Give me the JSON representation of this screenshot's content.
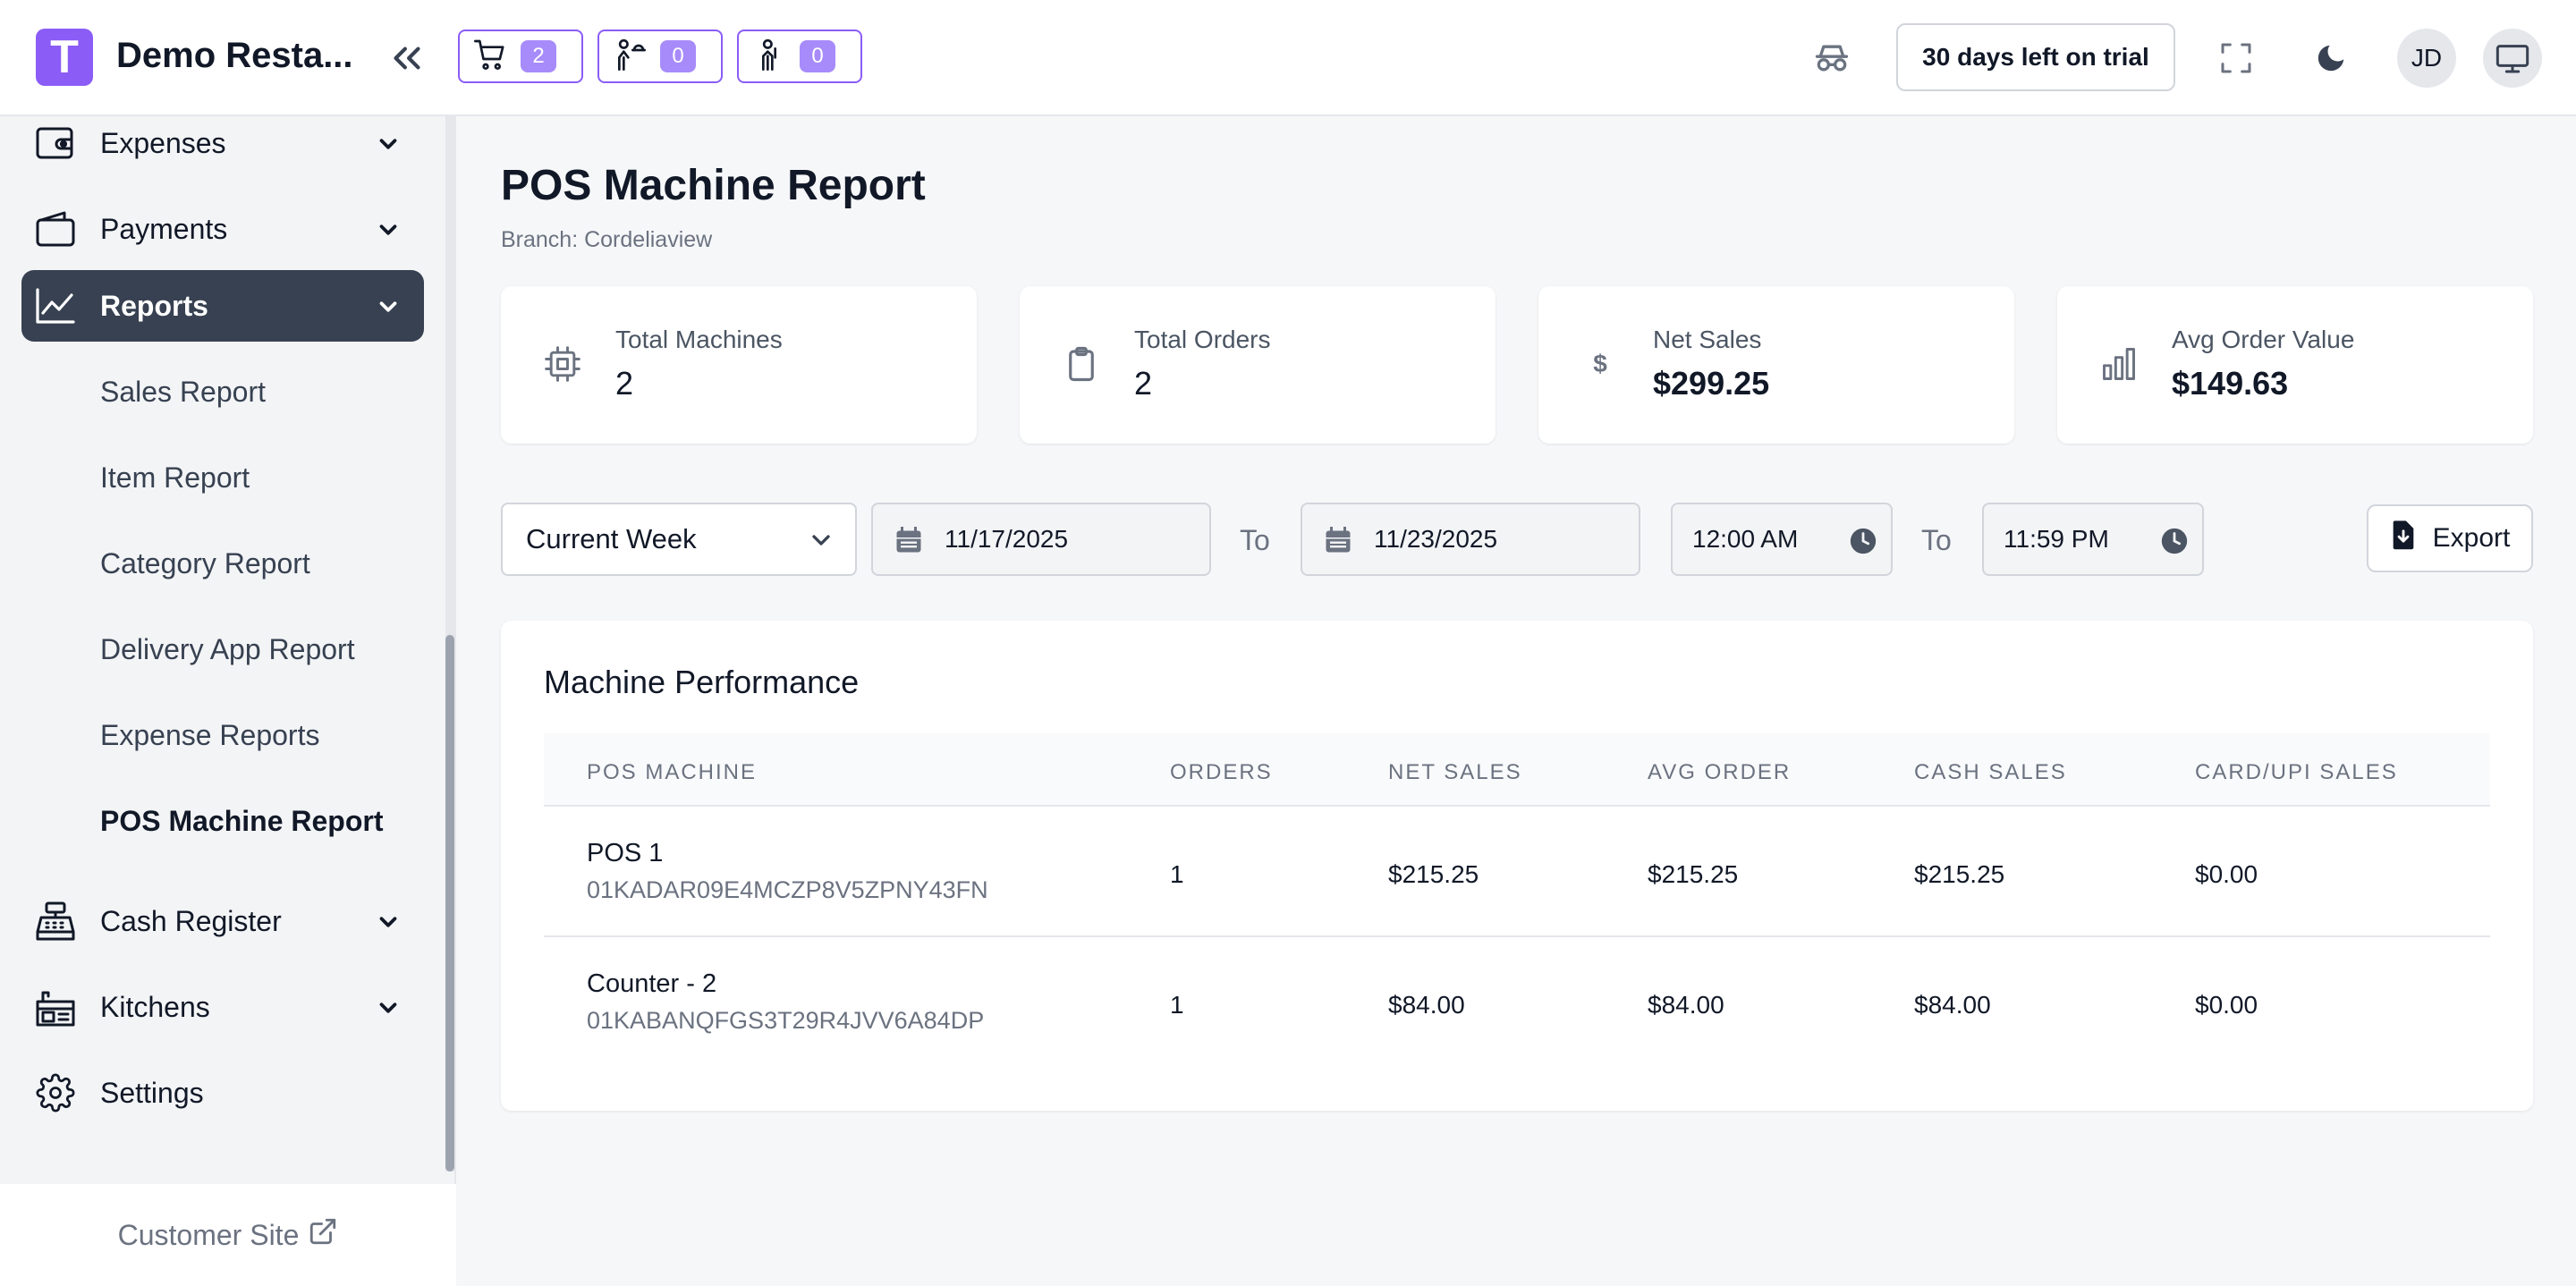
{
  "header": {
    "logo_letter": "T",
    "app_title": "Demo Resta...",
    "cart_count": "2",
    "waiter_count": "0",
    "chef_count": "0",
    "trial_text": "30 days left on trial",
    "avatar_initials": "JD"
  },
  "sidebar": {
    "items": [
      {
        "label": "Expenses"
      },
      {
        "label": "Payments"
      },
      {
        "label": "Reports"
      },
      {
        "label": "Cash Register"
      },
      {
        "label": "Kitchens"
      },
      {
        "label": "Settings"
      }
    ],
    "reports_sub": [
      "Sales Report",
      "Item Report",
      "Category Report",
      "Delivery App Report",
      "Expense Reports",
      "POS Machine Report"
    ],
    "customer_site": "Customer Site"
  },
  "page": {
    "title": "POS Machine Report",
    "branch": "Branch: Cordeliaview"
  },
  "stats": [
    {
      "label": "Total Machines",
      "value": "2"
    },
    {
      "label": "Total Orders",
      "value": "2"
    },
    {
      "label": "Net Sales",
      "value": "$299.25"
    },
    {
      "label": "Avg Order Value",
      "value": "$149.63"
    }
  ],
  "filters": {
    "period": "Current Week",
    "start_date": "11/17/2025",
    "to_label": "To",
    "end_date": "11/23/2025",
    "start_time": "12:00 AM",
    "end_time": "11:59 PM",
    "export_label": "Export"
  },
  "table": {
    "title": "Machine Performance",
    "headers": [
      "POS MACHINE",
      "ORDERS",
      "NET SALES",
      "AVG ORDER",
      "CASH SALES",
      "CARD/UPI SALES"
    ],
    "rows": [
      {
        "name": "POS 1",
        "id": "01KADAR09E4MCZP8V5ZPNY43FN",
        "orders": "1",
        "net": "$215.25",
        "avg": "$215.25",
        "cash": "$215.25",
        "card": "$0.00"
      },
      {
        "name": "Counter - 2",
        "id": "01KABANQFGS3T29R4JVV6A84DP",
        "orders": "1",
        "net": "$84.00",
        "avg": "$84.00",
        "cash": "$84.00",
        "card": "$0.00"
      }
    ]
  },
  "colors": {
    "accent": "#8b5cf6",
    "active_nav": "#374151"
  }
}
